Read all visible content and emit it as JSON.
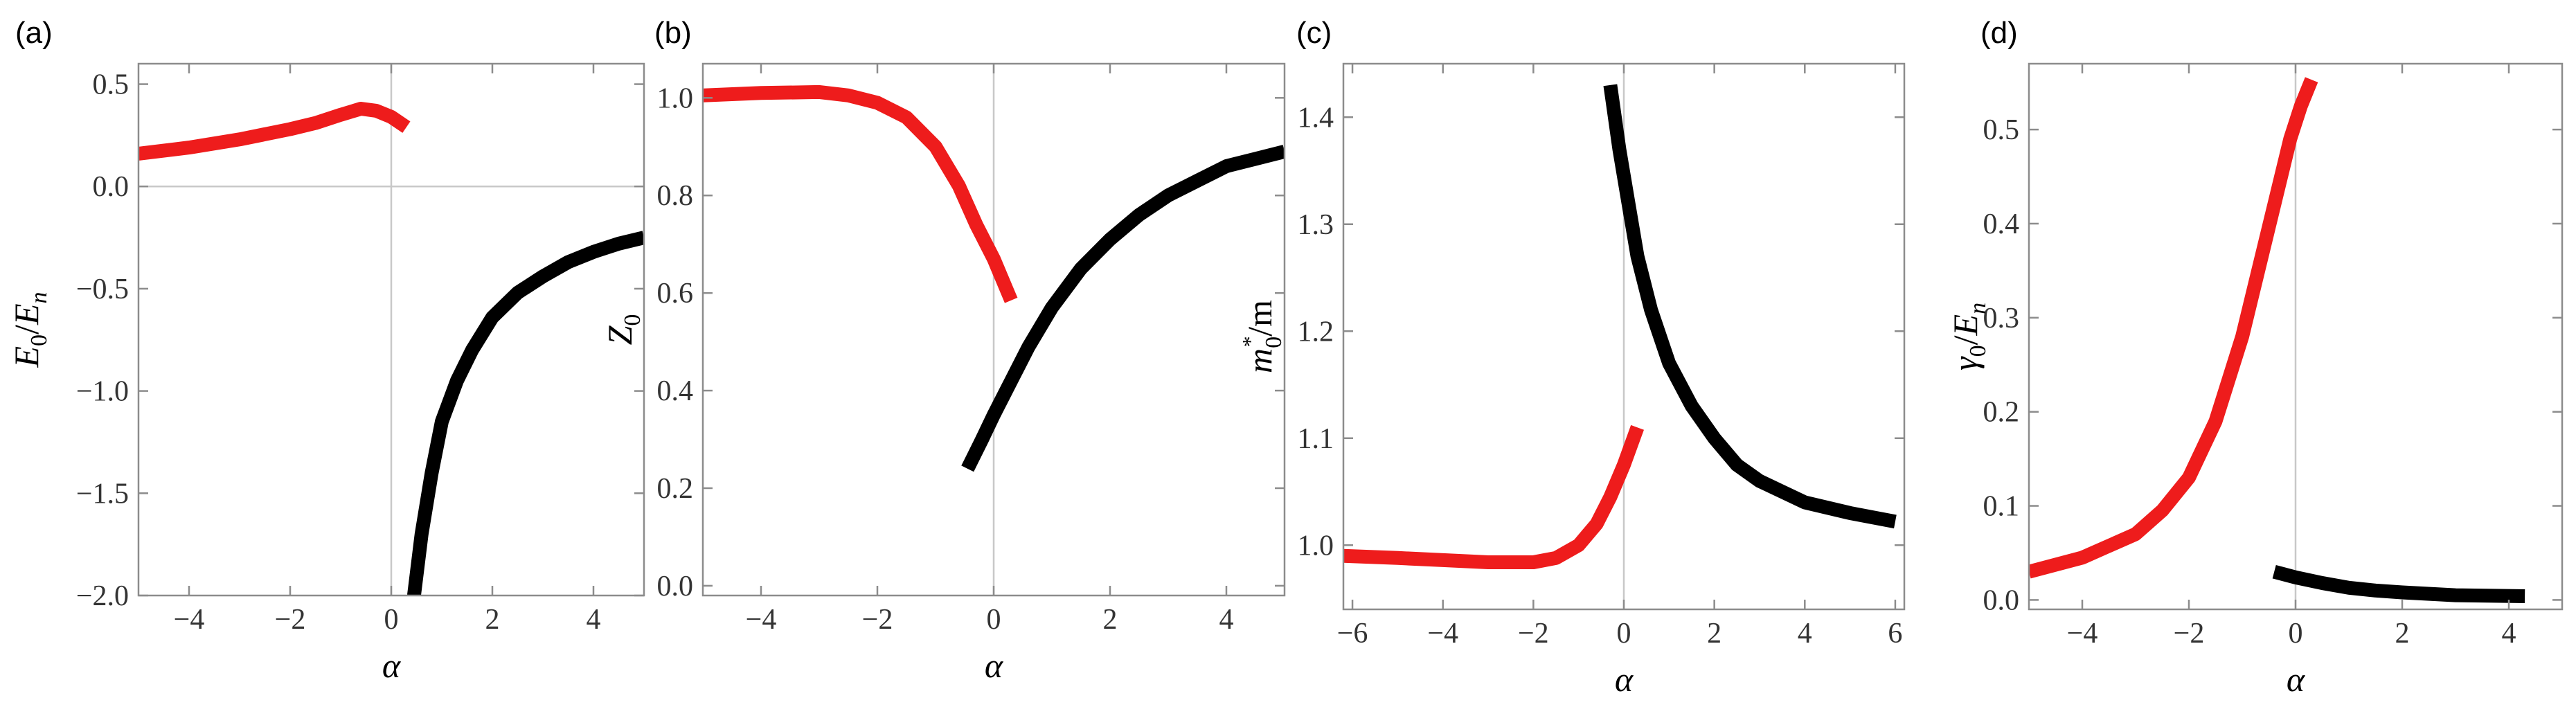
{
  "chart_data": [
    {
      "type": "line",
      "panel_label": "(a)",
      "xlabel": "α",
      "ylabel": "E0/En",
      "ylabel_parts": {
        "main": "E",
        "sub": "0",
        "sep": "/",
        "main2": "E",
        "sub2": "n"
      },
      "xlim": [
        -5,
        5
      ],
      "ylim": [
        -2.0,
        0.6
      ],
      "xticks": [
        -4,
        -2,
        0,
        2,
        4
      ],
      "xtick_labels": [
        "−4",
        "−2",
        "0",
        "2",
        "4"
      ],
      "yticks": [
        -2.0,
        -1.5,
        -1.0,
        -0.5,
        0.0,
        0.5
      ],
      "ytick_labels": [
        "−2.0",
        "−1.5",
        "−1.0",
        "−0.5",
        "0.0",
        "0.5"
      ],
      "zero_lines": {
        "x": true,
        "y": true
      },
      "series": [
        {
          "name": "red branch",
          "color": "#ee1c1c",
          "x": [
            -5,
            -4,
            -3,
            -2,
            -1.5,
            -1,
            -0.6,
            -0.3,
            0,
            0.3
          ],
          "y": [
            0.16,
            0.19,
            0.23,
            0.28,
            0.31,
            0.35,
            0.38,
            0.37,
            0.34,
            0.29
          ]
        },
        {
          "name": "black branch",
          "color": "#000000",
          "x": [
            0.45,
            0.6,
            0.8,
            1.0,
            1.3,
            1.6,
            2.0,
            2.5,
            3.0,
            3.5,
            4.0,
            4.5,
            5.0
          ],
          "y": [
            -2.0,
            -1.7,
            -1.4,
            -1.15,
            -0.95,
            -0.8,
            -0.64,
            -0.52,
            -0.44,
            -0.37,
            -0.32,
            -0.28,
            -0.25
          ]
        }
      ]
    },
    {
      "type": "line",
      "panel_label": "(b)",
      "xlabel": "α",
      "ylabel": "Z0",
      "ylabel_parts": {
        "main": "Z",
        "sub": "0"
      },
      "xlim": [
        -5,
        5
      ],
      "ylim": [
        -0.02,
        1.07
      ],
      "xticks": [
        -4,
        -2,
        0,
        2,
        4
      ],
      "xtick_labels": [
        "−4",
        "−2",
        "0",
        "2",
        "4"
      ],
      "yticks": [
        0.0,
        0.2,
        0.4,
        0.6,
        0.8,
        1.0
      ],
      "ytick_labels": [
        "0.0",
        "0.2",
        "0.4",
        "0.6",
        "0.8",
        "1.0"
      ],
      "zero_lines": {
        "x": true,
        "y": false
      },
      "series": [
        {
          "name": "red branch",
          "color": "#ee1c1c",
          "x": [
            -5,
            -4,
            -3,
            -2.5,
            -2,
            -1.5,
            -1,
            -0.6,
            -0.3,
            0,
            0.3
          ],
          "y": [
            1.005,
            1.01,
            1.012,
            1.005,
            0.99,
            0.96,
            0.9,
            0.82,
            0.74,
            0.67,
            0.585
          ]
        },
        {
          "name": "black branch",
          "color": "#000000",
          "x": [
            -0.45,
            -0.2,
            0,
            0.3,
            0.6,
            1.0,
            1.5,
            2.0,
            2.5,
            3.0,
            3.5,
            4.0,
            4.5,
            5.0
          ],
          "y": [
            0.24,
            0.3,
            0.35,
            0.42,
            0.49,
            0.57,
            0.65,
            0.71,
            0.76,
            0.8,
            0.83,
            0.86,
            0.875,
            0.89
          ]
        }
      ]
    },
    {
      "type": "line",
      "panel_label": "(c)",
      "xlabel": "α",
      "ylabel": "m*0/m",
      "ylabel_parts": {
        "main": "m",
        "sup": "*",
        "sub": "0",
        "tail": "/m"
      },
      "xlim": [
        -6.2,
        6.2
      ],
      "ylim": [
        0.94,
        1.45
      ],
      "xticks": [
        -6,
        -4,
        -2,
        0,
        2,
        4,
        6
      ],
      "xtick_labels": [
        "−6",
        "−4",
        "−2",
        "0",
        "2",
        "4",
        "6"
      ],
      "yticks": [
        1.0,
        1.1,
        1.2,
        1.3,
        1.4
      ],
      "ytick_labels": [
        "1.0",
        "1.1",
        "1.2",
        "1.3",
        "1.4"
      ],
      "zero_lines": {
        "x": true,
        "y": false
      },
      "series": [
        {
          "name": "red branch",
          "color": "#ee1c1c",
          "x": [
            -6.2,
            -5,
            -4,
            -3,
            -2,
            -1.5,
            -1,
            -0.6,
            -0.3,
            0,
            0.3
          ],
          "y": [
            0.99,
            0.988,
            0.986,
            0.984,
            0.984,
            0.988,
            1.0,
            1.02,
            1.045,
            1.075,
            1.11
          ]
        },
        {
          "name": "black branch",
          "color": "#000000",
          "x": [
            -0.3,
            -0.1,
            0.1,
            0.3,
            0.6,
            1.0,
            1.5,
            2.0,
            2.5,
            3.0,
            3.5,
            4.0,
            5.0,
            6.0
          ],
          "y": [
            1.43,
            1.37,
            1.32,
            1.27,
            1.22,
            1.17,
            1.13,
            1.1,
            1.075,
            1.06,
            1.05,
            1.04,
            1.03,
            1.022
          ]
        }
      ]
    },
    {
      "type": "line",
      "panel_label": "(d)",
      "xlabel": "α",
      "ylabel": "γ0/En",
      "ylabel_parts": {
        "main": "γ",
        "sub": "0",
        "sep": "/",
        "main2": "E",
        "sub2": "n"
      },
      "xlim": [
        -5,
        5
      ],
      "ylim": [
        -0.01,
        0.57
      ],
      "xticks": [
        -4,
        -2,
        0,
        2,
        4
      ],
      "xtick_labels": [
        "−4",
        "−2",
        "0",
        "2",
        "4"
      ],
      "yticks": [
        0.0,
        0.1,
        0.2,
        0.3,
        0.4,
        0.5
      ],
      "ytick_labels": [
        "0.0",
        "0.1",
        "0.2",
        "0.3",
        "0.4",
        "0.5"
      ],
      "zero_lines": {
        "x": true,
        "y": false
      },
      "series": [
        {
          "name": "red branch",
          "color": "#ee1c1c",
          "x": [
            -5,
            -4,
            -3,
            -2.5,
            -2,
            -1.5,
            -1,
            -0.7,
            -0.4,
            -0.1,
            0.1,
            0.3
          ],
          "y": [
            0.03,
            0.045,
            0.07,
            0.095,
            0.13,
            0.19,
            0.28,
            0.35,
            0.42,
            0.49,
            0.525,
            0.553
          ]
        },
        {
          "name": "black branch",
          "color": "#000000",
          "x": [
            -0.4,
            0,
            0.5,
            1.0,
            1.5,
            2.0,
            3.0,
            4.3
          ],
          "y": [
            0.03,
            0.024,
            0.018,
            0.013,
            0.01,
            0.008,
            0.005,
            0.004
          ]
        }
      ]
    }
  ]
}
